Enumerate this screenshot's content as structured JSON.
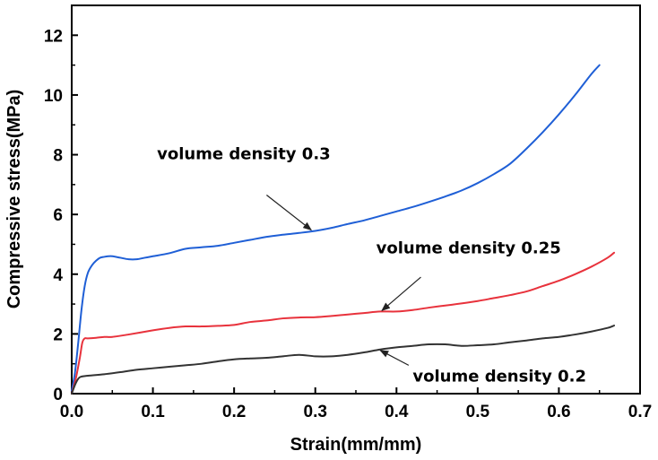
{
  "chart_data": {
    "type": "line",
    "title": "",
    "xlabel": "Strain(mm/mm)",
    "ylabel": "Compressive stress(MPa)",
    "xlim": [
      0.0,
      0.7
    ],
    "ylim": [
      0,
      13
    ],
    "xticks": [
      0.0,
      0.1,
      0.2,
      0.3,
      0.4,
      0.5,
      0.6,
      0.7
    ],
    "xtick_labels": [
      "0.0",
      "0.1",
      "0.2",
      "0.3",
      "0.4",
      "0.5",
      "0.6",
      "0.7"
    ],
    "yticks": [
      0,
      2,
      4,
      6,
      8,
      10,
      12
    ],
    "ytick_labels": [
      "0",
      "2",
      "4",
      "6",
      "8",
      "10",
      "12"
    ],
    "grid": false,
    "legend": "none",
    "series": [
      {
        "color": "#1f5fd6",
        "x": [
          0.0,
          0.004,
          0.008,
          0.012,
          0.016,
          0.02,
          0.025,
          0.03,
          0.035,
          0.04,
          0.045,
          0.05,
          0.06,
          0.07,
          0.08,
          0.09,
          0.1,
          0.12,
          0.14,
          0.16,
          0.18,
          0.2,
          0.22,
          0.24,
          0.26,
          0.28,
          0.3,
          0.32,
          0.34,
          0.36,
          0.38,
          0.4,
          0.42,
          0.44,
          0.46,
          0.48,
          0.5,
          0.52,
          0.54,
          0.56,
          0.58,
          0.6,
          0.62,
          0.64,
          0.65
        ],
        "y": [
          0.1,
          0.7,
          1.7,
          2.8,
          3.6,
          4.05,
          4.3,
          4.45,
          4.55,
          4.58,
          4.6,
          4.6,
          4.55,
          4.5,
          4.5,
          4.55,
          4.6,
          4.7,
          4.85,
          4.9,
          4.95,
          5.05,
          5.15,
          5.25,
          5.32,
          5.38,
          5.45,
          5.55,
          5.68,
          5.8,
          5.95,
          6.1,
          6.25,
          6.42,
          6.6,
          6.8,
          7.05,
          7.35,
          7.7,
          8.2,
          8.75,
          9.35,
          10.0,
          10.7,
          11.0
        ]
      },
      {
        "color": "#e8323c",
        "x": [
          0.0,
          0.005,
          0.01,
          0.013,
          0.016,
          0.02,
          0.03,
          0.04,
          0.05,
          0.07,
          0.1,
          0.12,
          0.14,
          0.16,
          0.18,
          0.2,
          0.22,
          0.24,
          0.26,
          0.28,
          0.3,
          0.32,
          0.34,
          0.36,
          0.38,
          0.4,
          0.42,
          0.44,
          0.46,
          0.48,
          0.5,
          0.52,
          0.54,
          0.56,
          0.58,
          0.6,
          0.62,
          0.64,
          0.66,
          0.668
        ],
        "y": [
          0.0,
          0.5,
          1.2,
          1.7,
          1.85,
          1.85,
          1.87,
          1.9,
          1.9,
          1.98,
          2.12,
          2.2,
          2.25,
          2.25,
          2.27,
          2.3,
          2.4,
          2.45,
          2.52,
          2.55,
          2.56,
          2.6,
          2.65,
          2.7,
          2.75,
          2.75,
          2.8,
          2.88,
          2.95,
          3.02,
          3.1,
          3.2,
          3.3,
          3.42,
          3.6,
          3.78,
          4.0,
          4.25,
          4.55,
          4.72
        ]
      },
      {
        "color": "#333333",
        "x": [
          0.0,
          0.005,
          0.01,
          0.02,
          0.04,
          0.06,
          0.08,
          0.1,
          0.12,
          0.14,
          0.16,
          0.18,
          0.2,
          0.22,
          0.24,
          0.26,
          0.28,
          0.3,
          0.32,
          0.34,
          0.36,
          0.38,
          0.4,
          0.42,
          0.44,
          0.46,
          0.48,
          0.5,
          0.52,
          0.54,
          0.56,
          0.58,
          0.6,
          0.62,
          0.64,
          0.66,
          0.668
        ],
        "y": [
          0.0,
          0.35,
          0.55,
          0.6,
          0.65,
          0.72,
          0.8,
          0.85,
          0.9,
          0.95,
          1.0,
          1.08,
          1.15,
          1.18,
          1.2,
          1.25,
          1.3,
          1.25,
          1.25,
          1.3,
          1.38,
          1.48,
          1.55,
          1.6,
          1.65,
          1.65,
          1.6,
          1.62,
          1.65,
          1.72,
          1.78,
          1.85,
          1.9,
          1.98,
          2.08,
          2.2,
          2.28
        ]
      }
    ],
    "annotations": [
      {
        "text": "volume density 0.3",
        "arrow_from": [
          0.24,
          6.65
        ],
        "arrow_to": [
          0.295,
          5.48
        ],
        "anchor": "start",
        "label_at": [
          0.105,
          7.85
        ]
      },
      {
        "text": "volume density 0.25",
        "arrow_from": [
          0.43,
          3.9
        ],
        "arrow_to": [
          0.382,
          2.78
        ],
        "anchor": "start",
        "label_at": [
          0.375,
          4.7
        ]
      },
      {
        "text": "volume density 0.2",
        "arrow_from": [
          0.415,
          0.95
        ],
        "arrow_to": [
          0.38,
          1.45
        ],
        "anchor": "start",
        "label_at": [
          0.42,
          0.4
        ]
      }
    ]
  }
}
